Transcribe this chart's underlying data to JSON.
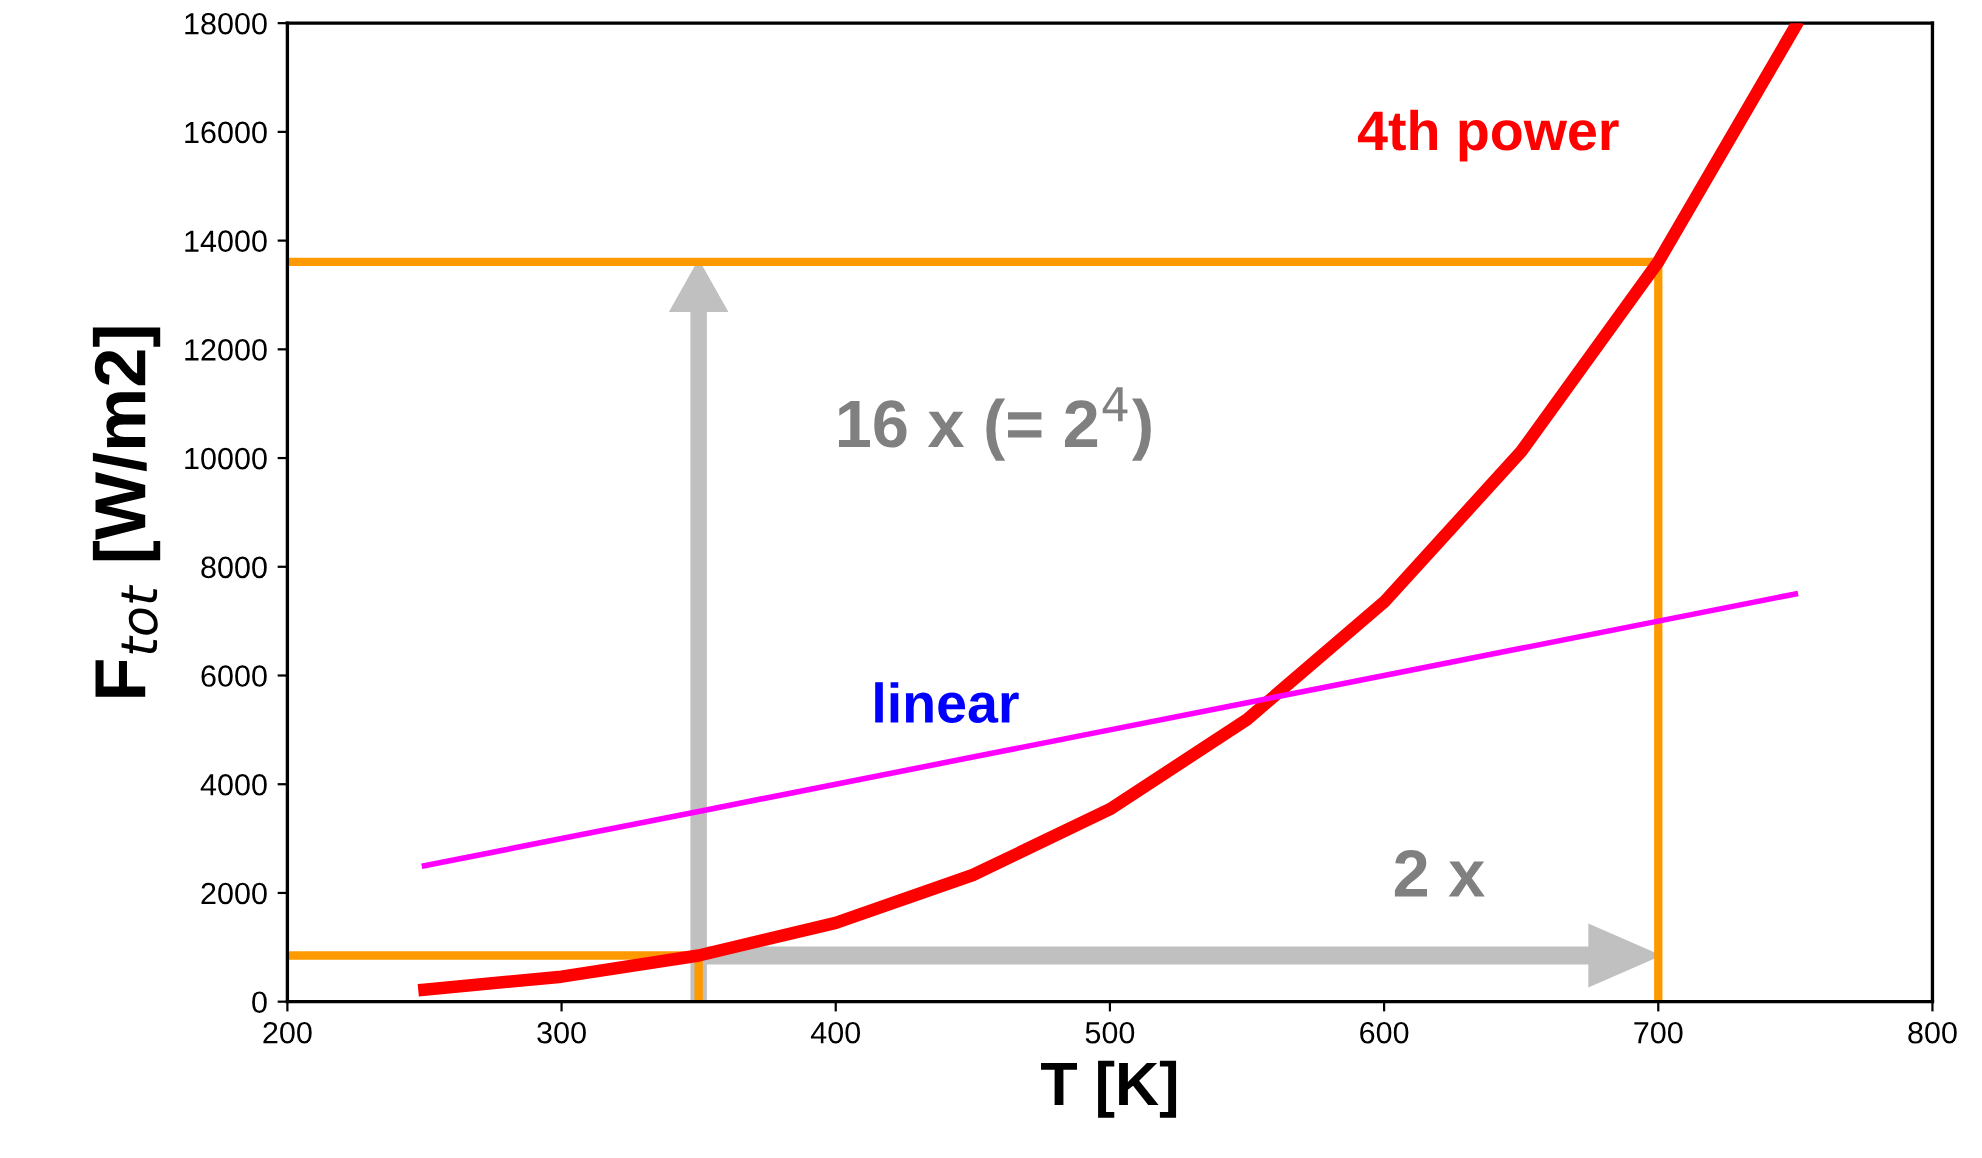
{
  "chart_data": {
    "type": "line",
    "xlabel": "T [K]",
    "ylabel": "F$_{tot}$ [W/m2]",
    "xlim": [
      200,
      800
    ],
    "xticks": [
      200,
      300,
      400,
      500,
      600,
      700,
      800
    ],
    "ylim": [
      0,
      18000
    ],
    "yticks": [
      0,
      2000,
      4000,
      6000,
      8000,
      10000,
      12000,
      14000,
      16000,
      18000
    ],
    "grid": false,
    "legend": false,
    "marker": "none",
    "line_style": "solid",
    "series": [
      {
        "name": "4th power",
        "color": "#ff0000",
        "x": [
          250,
          300,
          350,
          400,
          450,
          500,
          550,
          600,
          650,
          700,
          750
        ],
        "values": [
          220,
          460,
          850,
          1450,
          2330,
          3540,
          5190,
          7350,
          10120,
          13610,
          17940
        ]
      },
      {
        "name": "linear",
        "color": "#ff00ff",
        "x": [
          250,
          300,
          350,
          400,
          450,
          500,
          550,
          600,
          650,
          700,
          750
        ],
        "values": [
          2500,
          3000,
          3500,
          4000,
          4500,
          5000,
          5500,
          6000,
          6500,
          7000,
          7500
        ]
      },
      {
        "color": "#ff9900",
        "x": [
          200,
          350,
          350
        ],
        "values": [
          850,
          850,
          0
        ]
      },
      {
        "color": "#ff9900",
        "x": [
          200,
          700,
          700
        ],
        "values": [
          13610,
          13610,
          0
        ]
      }
    ],
    "annotations": [
      "16 x (= 2$^{4}$)",
      "2 x"
    ]
  }
}
